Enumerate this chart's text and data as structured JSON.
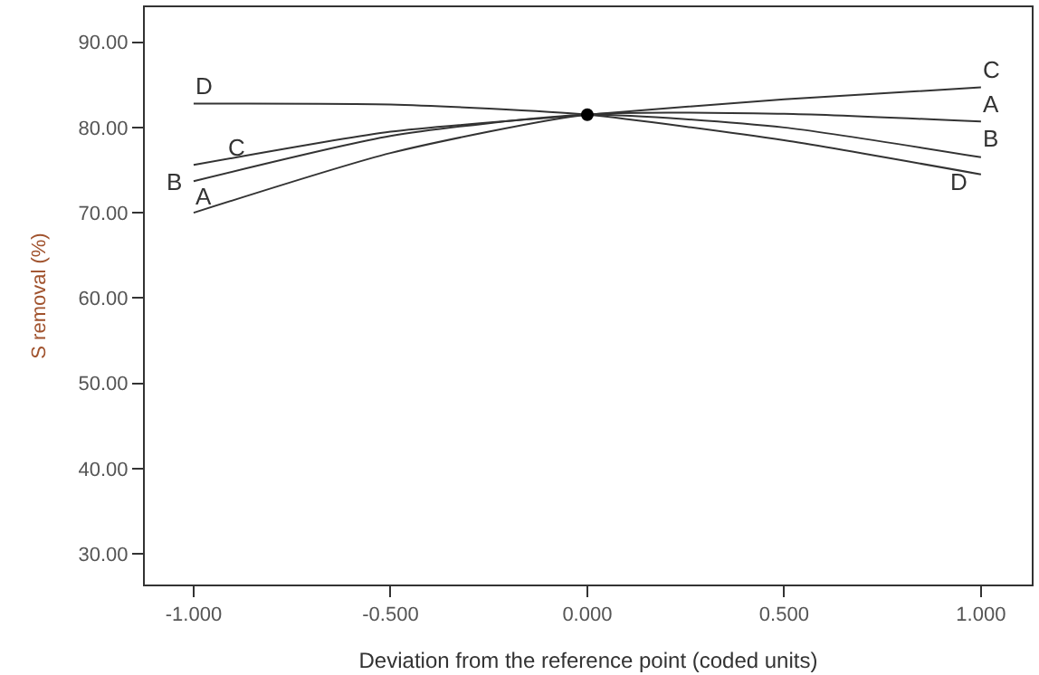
{
  "chart_data": {
    "type": "line",
    "xlabel": "Deviation from the reference point (coded units)",
    "ylabel": "S removal (%)",
    "xlim": [
      -1.124,
      1.129
    ],
    "ylim": [
      26.4,
      94.1
    ],
    "xticks": [
      {
        "value": -1,
        "label": "-1.000"
      },
      {
        "value": -0.5,
        "label": "-0.500"
      },
      {
        "value": 0,
        "label": "0.000"
      },
      {
        "value": 0.5,
        "label": "0.500"
      },
      {
        "value": 1,
        "label": "1.000"
      }
    ],
    "yticks": [
      {
        "value": 30,
        "label": "30.00"
      },
      {
        "value": 40,
        "label": "40.00"
      },
      {
        "value": 50,
        "label": "50.00"
      },
      {
        "value": 60,
        "label": "60.00"
      },
      {
        "value": 70,
        "label": "70.00"
      },
      {
        "value": 80,
        "label": "80.00"
      },
      {
        "value": 90,
        "label": "90.00"
      }
    ],
    "x": [
      -1,
      -0.5,
      0,
      0.5,
      1
    ],
    "series": [
      {
        "name": "A",
        "color": "#333333",
        "values": [
          70.0,
          77.0,
          81.5,
          81.6,
          80.7
        ]
      },
      {
        "name": "B",
        "color": "#333333",
        "values": [
          73.7,
          79.0,
          81.5,
          80.0,
          76.5
        ]
      },
      {
        "name": "C",
        "color": "#333333",
        "values": [
          75.6,
          79.5,
          81.5,
          83.3,
          84.7
        ]
      },
      {
        "name": "D",
        "color": "#333333",
        "values": [
          82.8,
          82.7,
          81.5,
          78.5,
          74.5
        ]
      },
      {
        "type": "scatter",
        "color": "#000000",
        "x": [
          0
        ],
        "values": [
          81.5
        ],
        "marker": "circle"
      }
    ],
    "marker": "none",
    "line_style": "solid"
  }
}
